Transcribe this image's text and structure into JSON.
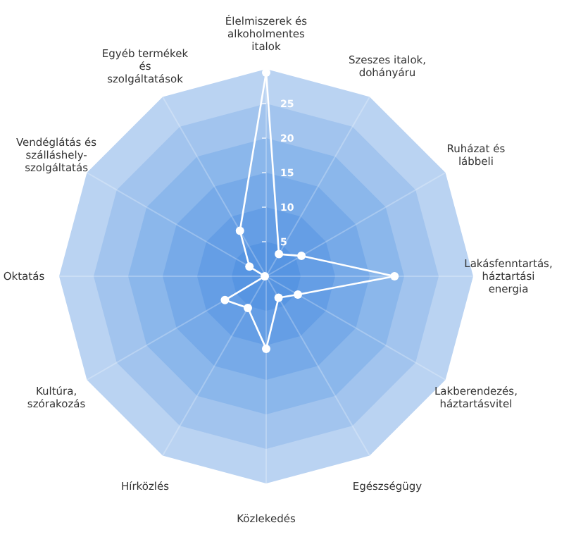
{
  "chart_data": {
    "type": "radar",
    "categories": [
      "Élelmiszerek és alkoholmentes italok",
      "Szeszes italok, dohányáru",
      "Ruházat és lábbeli",
      "Lakásfenntartás, háztartási energia",
      "Lakberendezés, háztartásvitel",
      "Egészségügy",
      "Közlekedés",
      "Hírközlés",
      "Kultúra, szórakozás",
      "Oktatás",
      "Vendéglátás és szálláshely-szolgáltatás",
      "Egyéb termékek és szolgáltatások"
    ],
    "series": [
      {
        "color": "#ffffff",
        "values": [
          29.5,
          3.7,
          5.9,
          18.6,
          5.3,
          3.6,
          10.5,
          5.3,
          6.9,
          0.2,
          2.8,
          7.6
        ]
      }
    ],
    "ylim": [
      0,
      30
    ],
    "yticks": [
      5,
      10,
      15,
      20,
      25
    ],
    "marker": "circle",
    "grid": true
  }
}
